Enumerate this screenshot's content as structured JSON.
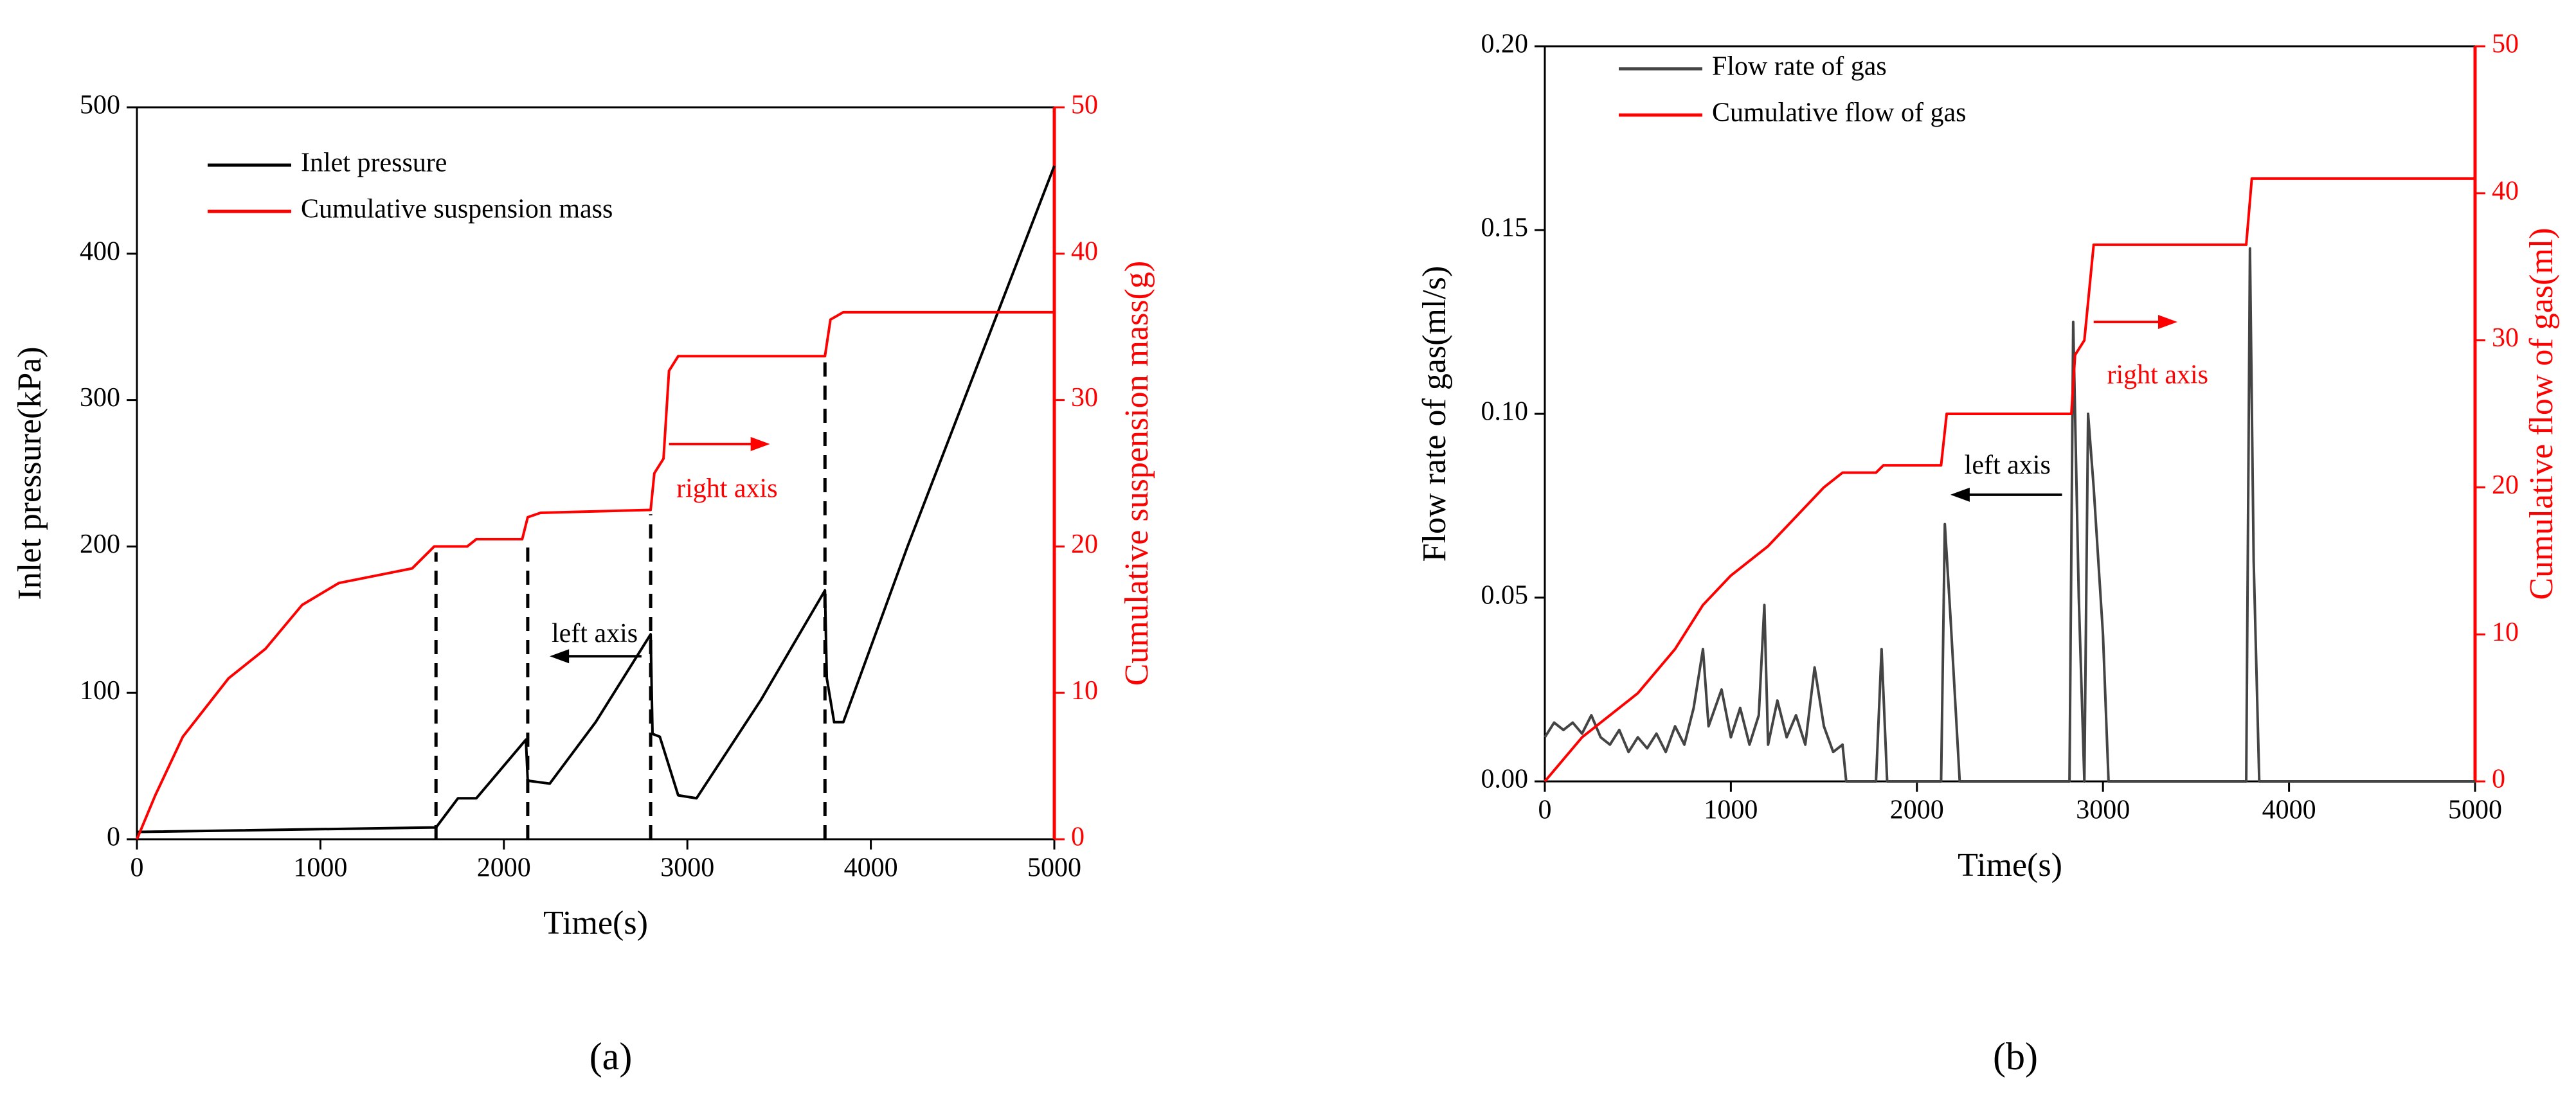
{
  "chart_data": [
    {
      "type": "line",
      "panel_label": "(a)",
      "x_label": "Time(s)",
      "y_label": "Inlet pressure(kPa)",
      "y2_label": "Cumulative suspension mass(g)",
      "xlim": [
        0,
        5000
      ],
      "xticks": [
        0,
        1000,
        2000,
        3000,
        4000,
        5000
      ],
      "ylim": [
        0,
        500
      ],
      "yticks": [
        0,
        100,
        200,
        300,
        400,
        500
      ],
      "y2lim": [
        0,
        50
      ],
      "y2ticks": [
        0,
        10,
        20,
        30,
        40,
        50
      ],
      "y2_color": "#ff0000",
      "legend": "upper left",
      "series": [
        {
          "name": "Inlet pressure",
          "color": "#000000",
          "x": [
            0,
            1600,
            1630,
            1750,
            1850,
            2120,
            2130,
            2250,
            2500,
            2800,
            2810,
            2850,
            2950,
            3050,
            3400,
            3750,
            3760,
            3800,
            3850,
            4200,
            4600,
            5000
          ],
          "values": [
            5,
            8,
            8,
            28,
            28,
            68,
            40,
            38,
            80,
            140,
            72,
            70,
            30,
            28,
            95,
            170,
            110,
            80,
            80,
            200,
            330,
            460
          ]
        },
        {
          "name": "Cumulative suspension mass",
          "color": "#ff0000",
          "axis": "y2",
          "x": [
            0,
            100,
            250,
            500,
            700,
            900,
            1100,
            1300,
            1500,
            1620,
            1800,
            1850,
            2100,
            2130,
            2200,
            2800,
            2820,
            2870,
            2900,
            2950,
            3750,
            3780,
            3850,
            5000
          ],
          "values": [
            0,
            3,
            7,
            11,
            13,
            16,
            17.5,
            18,
            18.5,
            20,
            20,
            20.5,
            20.5,
            22,
            22.3,
            22.5,
            25,
            26,
            32,
            33,
            33,
            35.5,
            36,
            36
          ]
        }
      ],
      "dashed_lines": [
        {
          "x": 1630,
          "y": 196
        },
        {
          "x": 2130,
          "y": 202
        },
        {
          "x": 2800,
          "y": 222
        },
        {
          "x": 3750,
          "y": 332
        }
      ],
      "annotations": [
        {
          "text": "left axis",
          "x": 2495,
          "y": 139,
          "color": "#000000",
          "arrow": [
            2750,
            2250,
            125
          ]
        },
        {
          "text": "right axis",
          "x": 3216,
          "y": 238,
          "color": "#ff0000",
          "arrow": [
            2900,
            3450,
            270
          ]
        }
      ]
    },
    {
      "type": "line",
      "panel_label": "(b)",
      "x_label": "Time(s)",
      "y_label": "Flow rate of gas(ml/s)",
      "y2_label": "Cumulative flow of gas(ml)",
      "xlim": [
        0,
        5000
      ],
      "xticks": [
        0,
        1000,
        2000,
        3000,
        4000,
        5000
      ],
      "ylim": [
        0,
        0.2
      ],
      "yticks": [
        {
          "value": 0,
          "label": "0.00"
        },
        {
          "value": 0.05,
          "label": "0.05"
        },
        {
          "value": 0.1,
          "label": "0.10"
        },
        {
          "value": 0.15,
          "label": "0.15"
        },
        {
          "value": 0.2,
          "label": "0.20"
        }
      ],
      "y2lim": [
        0,
        50
      ],
      "y2ticks": [
        0,
        10,
        20,
        30,
        40,
        50
      ],
      "y2_color": "#ff0000",
      "legend": "upper left",
      "series": [
        {
          "name": "Flow rate of gas",
          "color": "#444444",
          "x": [
            0,
            50,
            100,
            150,
            200,
            250,
            300,
            350,
            400,
            450,
            500,
            550,
            600,
            650,
            700,
            750,
            800,
            850,
            880,
            950,
            1000,
            1050,
            1100,
            1150,
            1180,
            1200,
            1250,
            1300,
            1350,
            1400,
            1450,
            1500,
            1550,
            1600,
            1620,
            1780,
            1810,
            1840,
            2130,
            2150,
            2180,
            2230,
            2820,
            2840,
            2870,
            2900,
            2920,
            2950,
            3000,
            3030,
            3770,
            3790,
            3810,
            3840,
            5000
          ],
          "values": [
            0.012,
            0.016,
            0.014,
            0.016,
            0.013,
            0.018,
            0.012,
            0.01,
            0.014,
            0.008,
            0.012,
            0.009,
            0.013,
            0.008,
            0.015,
            0.01,
            0.02,
            0.036,
            0.015,
            0.025,
            0.012,
            0.02,
            0.01,
            0.018,
            0.048,
            0.01,
            0.022,
            0.012,
            0.018,
            0.01,
            0.031,
            0.015,
            0.008,
            0.01,
            0,
            0,
            0.036,
            0,
            0,
            0.07,
            0.045,
            0,
            0,
            0.125,
            0.05,
            0,
            0.1,
            0.08,
            0.04,
            0,
            0,
            0.145,
            0.06,
            0,
            0
          ]
        },
        {
          "name": "Cumulative flow of gas",
          "color": "#ff0000",
          "axis": "y2",
          "x": [
            0,
            200,
            500,
            700,
            850,
            1000,
            1200,
            1350,
            1500,
            1600,
            1780,
            1820,
            2130,
            2160,
            2830,
            2850,
            2900,
            2950,
            3770,
            3800,
            5000
          ],
          "values": [
            0,
            3,
            6,
            9,
            12,
            14,
            16,
            18,
            20,
            21,
            21,
            21.5,
            21.5,
            25,
            25,
            29,
            30,
            36.5,
            36.5,
            41,
            41
          ]
        }
      ],
      "annotations": [
        {
          "text": "left axis",
          "x": 2487,
          "y": 0.0854,
          "color": "#000000",
          "arrow": [
            2780,
            2180,
            0.078
          ]
        },
        {
          "text": "right axis",
          "x": 3294,
          "y": 0.11,
          "color": "#ff0000",
          "arrow": [
            2950,
            3400,
            0.125
          ]
        }
      ]
    }
  ]
}
